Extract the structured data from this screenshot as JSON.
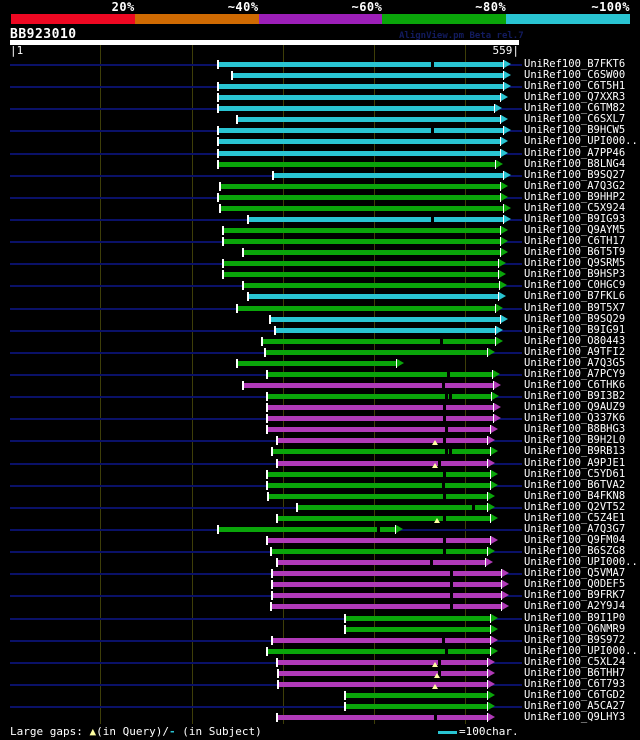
{
  "title": "BB923010",
  "watermark": "AlignView.pm Beta rel.7",
  "ruler": {
    "start_label": "|1",
    "end_label": "559|",
    "min": 1,
    "max": 559
  },
  "footer": {
    "prefix": "Large gaps: ",
    "tri": "▲",
    "query_text": "(in Query)/",
    "dash": "-",
    "subject_text": " (in Subject)",
    "swatch_label": "=100char."
  },
  "colors": {
    "cyan": "#29c4d2",
    "green": "#0aa50a",
    "magenta": "#b03ab8",
    "navy": "#0a1168",
    "grid": "#3e3e08",
    "triangle": "#ffffa0",
    "gap": "#000000"
  },
  "chart_data": {
    "type": "bar",
    "subtype": "horizontal-alignment-spans",
    "title": "BB923010",
    "xlabel": "query position (1-559)",
    "ylabel": "database hits",
    "x_range": [
      1,
      559
    ],
    "gridlines": [
      100,
      200,
      300,
      400,
      500
    ],
    "grid": true,
    "legend": {
      "position": "top",
      "entries": [
        {
          "label": "20%",
          "color": "#ee0822"
        },
        {
          "label": "~40%",
          "color": "#cf6a02"
        },
        {
          "label": "~60%",
          "color": "#9c1fb8"
        },
        {
          "label": "~80%",
          "color": "#0aa50a"
        },
        {
          "label": "~100%",
          "color": "#29c4d2"
        }
      ]
    },
    "color_identity_map": {
      "cyan": "~100%",
      "green": "~80%",
      "magenta": "~60%"
    },
    "rows": [
      {
        "label": "UniRef100_B7FKT6",
        "color": "cyan",
        "start": 229,
        "end": 550,
        "gaps": [
          464
        ]
      },
      {
        "label": "UniRef100_C6SW00",
        "color": "cyan",
        "start": 244,
        "end": 550
      },
      {
        "label": "UniRef100_C6T5H1",
        "color": "cyan",
        "start": 229,
        "end": 550
      },
      {
        "label": "UniRef100_Q7XXR3",
        "color": "cyan",
        "start": 229,
        "end": 547
      },
      {
        "label": "UniRef100_C6TM82",
        "color": "cyan",
        "start": 229,
        "end": 540
      },
      {
        "label": "UniRef100_C6SXL7",
        "color": "cyan",
        "start": 250,
        "end": 547
      },
      {
        "label": "UniRef100_B9HCW5",
        "color": "cyan",
        "start": 229,
        "end": 550,
        "gaps": [
          464
        ]
      },
      {
        "label": "UniRef100_UPI000..",
        "color": "cyan",
        "start": 229,
        "end": 547
      },
      {
        "label": "UniRef100_A7PP46",
        "color": "cyan",
        "start": 229,
        "end": 547
      },
      {
        "label": "UniRef100_B8LNG4",
        "color": "green",
        "start": 229,
        "end": 542
      },
      {
        "label": "UniRef100_B9SQ27",
        "color": "cyan",
        "start": 289,
        "end": 550
      },
      {
        "label": "UniRef100_A7Q3G2",
        "color": "green",
        "start": 231,
        "end": 547
      },
      {
        "label": "UniRef100_B9HHP2",
        "color": "green",
        "start": 229,
        "end": 547
      },
      {
        "label": "UniRef100_C5X924",
        "color": "green",
        "start": 231,
        "end": 550
      },
      {
        "label": "UniRef100_B9IG93",
        "color": "cyan",
        "start": 262,
        "end": 550,
        "gaps": [
          464
        ]
      },
      {
        "label": "UniRef100_Q9AYM5",
        "color": "green",
        "start": 234,
        "end": 547
      },
      {
        "label": "UniRef100_C6TH17",
        "color": "green",
        "start": 234,
        "end": 547
      },
      {
        "label": "UniRef100_B6T5T9",
        "color": "green",
        "start": 256,
        "end": 547
      },
      {
        "label": "UniRef100_Q9SRM5",
        "color": "green",
        "start": 234,
        "end": 545
      },
      {
        "label": "UniRef100_B9HSP3",
        "color": "green",
        "start": 234,
        "end": 545
      },
      {
        "label": "UniRef100_C0HGC9",
        "color": "green",
        "start": 256,
        "end": 546
      },
      {
        "label": "UniRef100_B7FKL6",
        "color": "cyan",
        "start": 262,
        "end": 545
      },
      {
        "label": "UniRef100_B9T5X7",
        "color": "green",
        "start": 250,
        "end": 542
      },
      {
        "label": "UniRef100_B9SQ29",
        "color": "cyan",
        "start": 286,
        "end": 547
      },
      {
        "label": "UniRef100_B9IG91",
        "color": "cyan",
        "start": 291,
        "end": 542
      },
      {
        "label": "UniRef100_O80443",
        "color": "green",
        "start": 277,
        "end": 542,
        "gaps": [
          473
        ]
      },
      {
        "label": "UniRef100_A9TFI2",
        "color": "green",
        "start": 280,
        "end": 533
      },
      {
        "label": "UniRef100_A7Q3G5",
        "color": "green",
        "start": 250,
        "end": 433
      },
      {
        "label": "UniRef100_A7PCY9",
        "color": "green",
        "start": 283,
        "end": 538,
        "gaps": [
          481
        ]
      },
      {
        "label": "UniRef100_C6THK6",
        "color": "magenta",
        "start": 256,
        "end": 539,
        "gaps": [
          476
        ]
      },
      {
        "label": "UniRef100_B9I3B2",
        "color": "green",
        "start": 283,
        "end": 537,
        "gaps": [
          479,
          483
        ]
      },
      {
        "label": "UniRef100_Q9AUZ9",
        "color": "magenta",
        "start": 283,
        "end": 539,
        "gaps": [
          477
        ]
      },
      {
        "label": "UniRef100_Q337K6",
        "color": "magenta",
        "start": 283,
        "end": 539,
        "gaps": [
          477
        ]
      },
      {
        "label": "UniRef100_B8BHG3",
        "color": "magenta",
        "start": 283,
        "end": 536,
        "gaps": [
          479
        ]
      },
      {
        "label": "UniRef100_B9H2L0",
        "color": "magenta",
        "start": 294,
        "end": 533,
        "gaps": [
          477
        ],
        "tris": [
          467
        ]
      },
      {
        "label": "UniRef100_B9RB13",
        "color": "green",
        "start": 288,
        "end": 536,
        "gaps": [
          479,
          483
        ]
      },
      {
        "label": "UniRef100_A9PJE1",
        "color": "magenta",
        "start": 294,
        "end": 533,
        "gaps": [
          471
        ],
        "tris": [
          467
        ]
      },
      {
        "label": "UniRef100_C5YD61",
        "color": "green",
        "start": 283,
        "end": 536,
        "gaps": [
          477
        ]
      },
      {
        "label": "UniRef100_B6TVA2",
        "color": "green",
        "start": 283,
        "end": 536,
        "gaps": [
          476
        ]
      },
      {
        "label": "UniRef100_B4FKN8",
        "color": "green",
        "start": 284,
        "end": 533,
        "gaps": [
          477
        ]
      },
      {
        "label": "UniRef100_Q2VT52",
        "color": "green",
        "start": 316,
        "end": 533,
        "gaps": [
          509
        ]
      },
      {
        "label": "UniRef100_C5Z4E1",
        "color": "green",
        "start": 294,
        "end": 536,
        "gaps": [
          477
        ],
        "tris": [
          469
        ]
      },
      {
        "label": "UniRef100_A7Q3G7",
        "color": "green",
        "start": 229,
        "end": 432,
        "gaps": [
          404
        ]
      },
      {
        "label": "UniRef100_Q9FM04",
        "color": "magenta",
        "start": 283,
        "end": 536,
        "gaps": [
          477
        ]
      },
      {
        "label": "UniRef100_B6SZG8",
        "color": "green",
        "start": 287,
        "end": 533,
        "gaps": [
          477
        ]
      },
      {
        "label": "UniRef100_UPI000..",
        "color": "magenta",
        "start": 294,
        "end": 531,
        "gaps": [
          462
        ]
      },
      {
        "label": "UniRef100_Q5VMA7",
        "color": "magenta",
        "start": 288,
        "end": 548,
        "gaps": [
          484
        ]
      },
      {
        "label": "UniRef100_Q0DEF5",
        "color": "magenta",
        "start": 288,
        "end": 548,
        "gaps": [
          484
        ]
      },
      {
        "label": "UniRef100_B9FRK7",
        "color": "magenta",
        "start": 288,
        "end": 548,
        "gaps": [
          484
        ]
      },
      {
        "label": "UniRef100_A2Y9J4",
        "color": "magenta",
        "start": 287,
        "end": 548,
        "gaps": [
          484
        ]
      },
      {
        "label": "UniRef100_B9I1P0",
        "color": "green",
        "start": 368,
        "end": 536
      },
      {
        "label": "UniRef100_Q6NMR9",
        "color": "green",
        "start": 368,
        "end": 536
      },
      {
        "label": "UniRef100_B9S972",
        "color": "magenta",
        "start": 288,
        "end": 536,
        "gaps": [
          476
        ]
      },
      {
        "label": "UniRef100_UPI000..",
        "color": "green",
        "start": 283,
        "end": 536,
        "gaps": [
          479
        ]
      },
      {
        "label": "UniRef100_C5XL24",
        "color": "magenta",
        "start": 294,
        "end": 533,
        "gaps": [
          471
        ],
        "tris": [
          467
        ]
      },
      {
        "label": "UniRef100_B6THH7",
        "color": "magenta",
        "start": 295,
        "end": 533,
        "gaps": [
          471
        ],
        "tris": [
          469
        ]
      },
      {
        "label": "UniRef100_C6T793",
        "color": "magenta",
        "start": 295,
        "end": 533,
        "tris": [
          467
        ]
      },
      {
        "label": "UniRef100_C6TGD2",
        "color": "green",
        "start": 368,
        "end": 533
      },
      {
        "label": "UniRef100_A5CA27",
        "color": "green",
        "start": 368,
        "end": 533
      },
      {
        "label": "UniRef100_Q9LHY3",
        "color": "magenta",
        "start": 294,
        "end": 533,
        "gaps": [
          467
        ]
      }
    ]
  }
}
